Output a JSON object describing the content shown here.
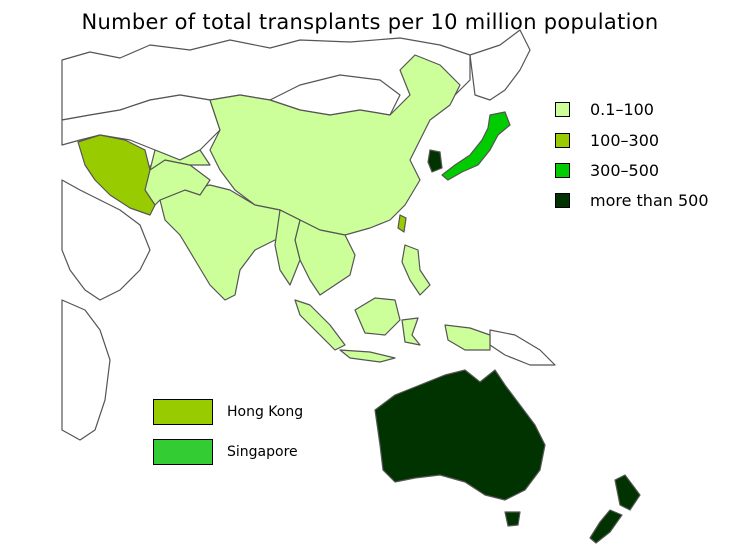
{
  "title": "Number of total transplants per 10 million population",
  "legend": [
    {
      "label": "0.1–100",
      "color": "#ccff99"
    },
    {
      "label": "100–300",
      "color": "#99cc00"
    },
    {
      "label": "300–500",
      "color": "#00cc00"
    },
    {
      "label": "more than 500",
      "color": "#003300"
    }
  ],
  "city_legend": [
    {
      "label": "Hong Kong",
      "color": "#99cc00"
    },
    {
      "label": "Singapore",
      "color": "#33cc33"
    }
  ],
  "colors": {
    "border": "#555555",
    "no_data": "#ffffff"
  }
}
